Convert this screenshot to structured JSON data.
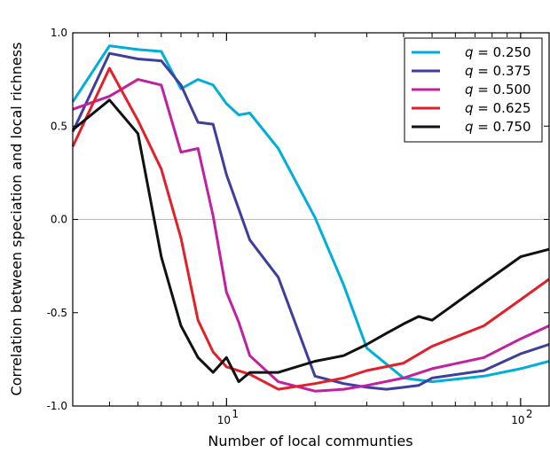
{
  "chart_data": {
    "type": "line",
    "xlabel": "Number of local communties",
    "ylabel": "Correlation between speciation and local richness",
    "x_scale": "log",
    "xlim": [
      3,
      125
    ],
    "ylim": [
      -1.0,
      1.0
    ],
    "y_ticks": [
      {
        "value": 1.0,
        "label": "1.0"
      },
      {
        "value": 0.5,
        "label": "0.5"
      },
      {
        "value": 0.0,
        "label": "0.0"
      },
      {
        "value": -0.5,
        "label": "-0.5"
      },
      {
        "value": -1.0,
        "label": "-1.0"
      }
    ],
    "x_ticks": [
      {
        "value": 10,
        "base": "10",
        "exp": "1"
      },
      {
        "value": 100,
        "base": "10",
        "exp": "2"
      }
    ],
    "reference_line": 0.0,
    "grid": false,
    "legend_position": "top-right",
    "legend_symbol": "q",
    "series": [
      {
        "name": "0.250",
        "color": "#00AEDB",
        "x": [
          3,
          4,
          5,
          6,
          7,
          8,
          9,
          10,
          11,
          12,
          15,
          20,
          25,
          30,
          40,
          50,
          75,
          100,
          125
        ],
        "y": [
          0.63,
          0.93,
          0.91,
          0.9,
          0.7,
          0.75,
          0.72,
          0.62,
          0.56,
          0.57,
          0.38,
          0.01,
          -0.35,
          -0.69,
          -0.85,
          -0.87,
          -0.84,
          -0.8,
          -0.76
        ]
      },
      {
        "name": "0.375",
        "color": "#3E3E9C",
        "x": [
          3,
          4,
          5,
          6,
          7,
          8,
          9,
          10,
          12,
          15,
          20,
          25,
          30,
          35,
          40,
          45,
          50,
          75,
          100,
          125
        ],
        "y": [
          0.47,
          0.89,
          0.86,
          0.85,
          0.72,
          0.52,
          0.51,
          0.24,
          -0.11,
          -0.31,
          -0.84,
          -0.88,
          -0.9,
          -0.91,
          -0.9,
          -0.89,
          -0.85,
          -0.81,
          -0.72,
          -0.67
        ]
      },
      {
        "name": "0.500",
        "color": "#C0219E",
        "x": [
          3,
          4,
          5,
          6,
          7,
          8,
          9,
          10,
          11,
          12,
          15,
          20,
          25,
          30,
          40,
          50,
          75,
          100,
          125
        ],
        "y": [
          0.59,
          0.66,
          0.75,
          0.72,
          0.36,
          0.38,
          0.02,
          -0.39,
          -0.55,
          -0.73,
          -0.87,
          -0.92,
          -0.91,
          -0.89,
          -0.85,
          -0.8,
          -0.74,
          -0.64,
          -0.57
        ]
      },
      {
        "name": "0.625",
        "color": "#E1202A",
        "x": [
          3,
          4,
          5,
          6,
          7,
          8,
          9,
          10,
          12,
          15,
          20,
          25,
          30,
          40,
          50,
          75,
          100,
          125
        ],
        "y": [
          0.39,
          0.81,
          0.53,
          0.27,
          -0.1,
          -0.54,
          -0.71,
          -0.79,
          -0.83,
          -0.91,
          -0.88,
          -0.85,
          -0.81,
          -0.77,
          -0.68,
          -0.57,
          -0.43,
          -0.32
        ]
      },
      {
        "name": "0.750",
        "color": "#111111",
        "x": [
          3,
          4,
          5,
          6,
          7,
          8,
          9,
          10,
          11,
          12,
          15,
          20,
          25,
          30,
          35,
          40,
          45,
          50,
          75,
          100,
          125
        ],
        "y": [
          0.48,
          0.64,
          0.46,
          -0.2,
          -0.57,
          -0.74,
          -0.82,
          -0.74,
          -0.87,
          -0.82,
          -0.82,
          -0.76,
          -0.73,
          -0.67,
          -0.61,
          -0.56,
          -0.52,
          -0.54,
          -0.34,
          -0.2,
          -0.16
        ]
      }
    ]
  }
}
